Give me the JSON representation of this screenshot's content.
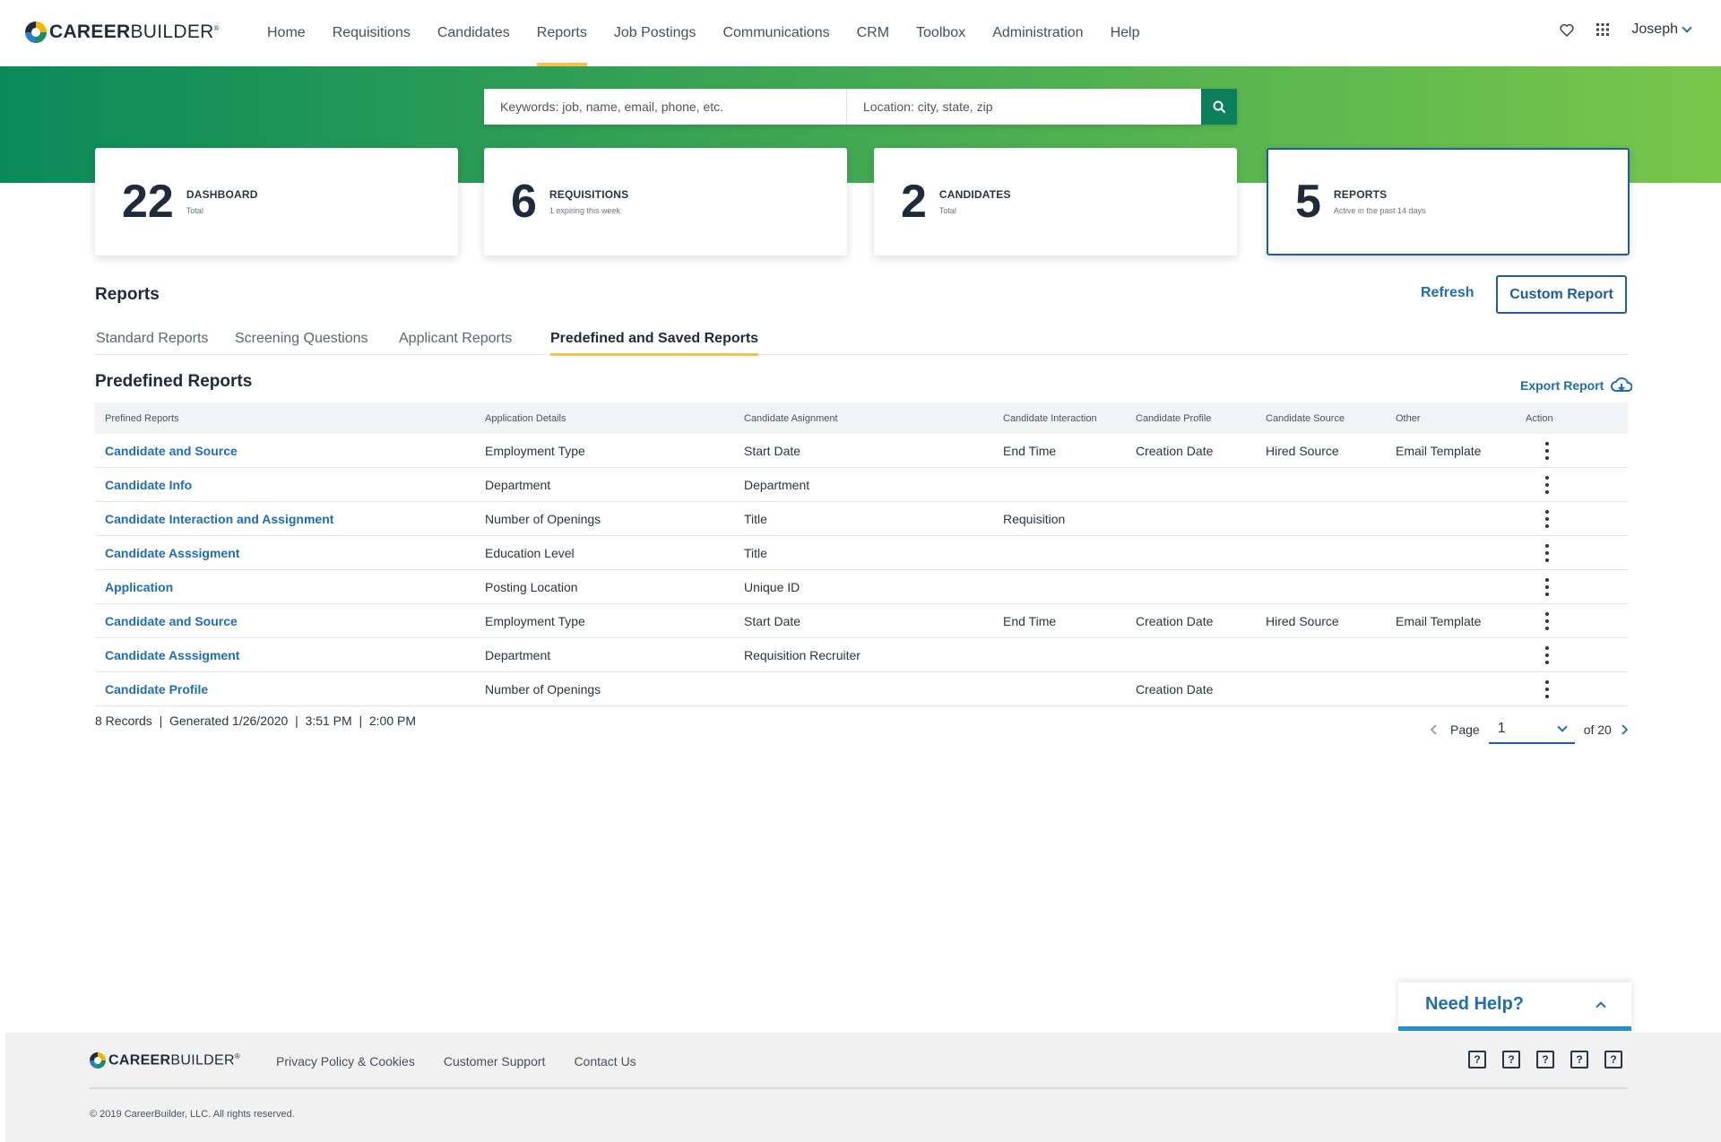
{
  "brand": {
    "bold": "CAREER",
    "light": "BUILDER"
  },
  "nav": [
    "Home",
    "Requisitions",
    "Candidates",
    "Reports",
    "Job Postings",
    "Communications",
    "CRM",
    "Toolbox",
    "Administration",
    "Help"
  ],
  "nav_active": "Reports",
  "user": "Joseph",
  "search": {
    "keywords_placeholder": "Keywords: job, name, email, phone, etc.",
    "location_placeholder": "Location: city, state, zip"
  },
  "stats": [
    {
      "number": "22",
      "title": "DASHBOARD",
      "sub": "Total"
    },
    {
      "number": "6",
      "title": "REQUISITIONS",
      "sub": "1 expiring this week"
    },
    {
      "number": "2",
      "title": "CANDIDATES",
      "sub": "Total"
    },
    {
      "number": "5",
      "title": "REPORTS",
      "sub": "Active in the past 14 days"
    }
  ],
  "reports": {
    "heading": "Reports",
    "refresh": "Refresh",
    "custom_report": "Custom Report",
    "tabs": [
      "Standard Reports",
      "Screening Questions",
      "Applicant Reports",
      "Predefined and Saved Reports"
    ],
    "active_tab": "Predefined and Saved Reports"
  },
  "predefined": {
    "heading": "Predefined Reports",
    "export": "Export Report",
    "columns": [
      "Prefined Reports",
      "Application Details",
      "Candidate Asignment",
      "Candidate Interaction",
      "Candidate Profile",
      "Candidate Source",
      "Other",
      "Action"
    ],
    "rows": [
      [
        "Candidate and Source",
        "Employment Type",
        "Start Date",
        "End Time",
        "Creation Date",
        "Hired Source",
        "Email Template"
      ],
      [
        "Candidate Info",
        "Department",
        "Department",
        "",
        "",
        "",
        ""
      ],
      [
        "Candidate Interaction and Assignment",
        "Number of Openings",
        "Title",
        "Requisition",
        "",
        "",
        ""
      ],
      [
        "Candidate Asssigment",
        "Education Level",
        "Title",
        "",
        "",
        "",
        ""
      ],
      [
        "Application",
        "Posting Location",
        "Unique ID",
        "",
        "",
        "",
        ""
      ],
      [
        "Candidate and Source",
        "Employment Type",
        "Start Date",
        "End Time",
        "Creation Date",
        "Hired Source",
        "Email Template"
      ],
      [
        "Candidate Asssigment",
        "Department",
        "Requisition Recruiter",
        "",
        "",
        "",
        ""
      ],
      [
        "Candidate Profile",
        "Number of Openings",
        "",
        "",
        "Creation Date",
        "",
        ""
      ]
    ],
    "meta": "8 Records  |  Generated 1/26/2020  |  3:51 PM  |  2:00 PM",
    "pager": {
      "label": "Page",
      "current": "1",
      "total": "of 20"
    }
  },
  "help": "Need Help?",
  "footer": {
    "links": [
      "Privacy Policy & Cookies",
      "Customer Support",
      "Contact Us"
    ],
    "copyright": "© 2019 CareerBuilder, LLC. All rights reserved."
  },
  "colors": {
    "primary_blue": "#1f6db5",
    "accent_yellow": "#f2c14e",
    "green_start": "#0a8a5a",
    "green_end": "#78c64b"
  }
}
